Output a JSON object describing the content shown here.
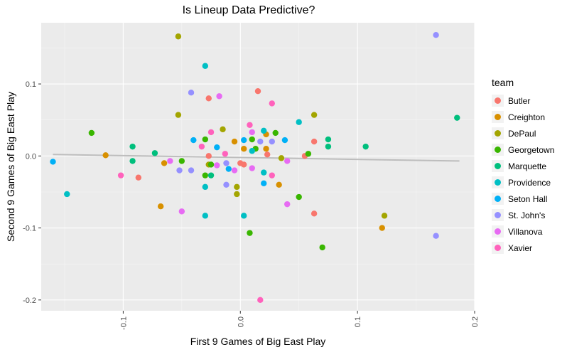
{
  "chart_data": {
    "type": "scatter",
    "title": "Is Lineup Data Predictive?",
    "xlabel": "First 9 Games of Big East Play",
    "ylabel": "Second 9 Games of Big East Play",
    "xlim": [
      -0.17,
      0.2
    ],
    "ylim": [
      -0.215,
      0.185
    ],
    "x_ticks": [
      -0.1,
      0.0,
      0.1,
      0.2
    ],
    "x_tick_labels": [
      "-0.1",
      "0.0",
      "0.1",
      "0.2"
    ],
    "y_ticks": [
      -0.2,
      -0.1,
      0.0,
      0.1
    ],
    "y_tick_labels": [
      "-0.2",
      "-0.1",
      "0.0",
      "0.1"
    ],
    "grid": true,
    "legend_title": "team",
    "legend_position": "right",
    "trend_line": {
      "x": [
        -0.16,
        0.187
      ],
      "y": [
        0.002,
        -0.007
      ]
    },
    "series": [
      {
        "name": "Butler",
        "color": "#F8766D",
        "points": [
          [
            -0.027,
            0.08
          ],
          [
            0.015,
            0.09
          ],
          [
            -0.087,
            -0.03
          ],
          [
            -0.027,
            0.0
          ],
          [
            0.0,
            -0.01
          ],
          [
            0.023,
            0.002
          ],
          [
            0.055,
            0.0
          ],
          [
            0.063,
            0.02
          ],
          [
            0.063,
            -0.08
          ],
          [
            0.003,
            -0.012
          ]
        ]
      },
      {
        "name": "Creighton",
        "color": "#D89000",
        "points": [
          [
            -0.115,
            0.001
          ],
          [
            -0.068,
            -0.07
          ],
          [
            -0.065,
            -0.01
          ],
          [
            -0.005,
            0.02
          ],
          [
            0.003,
            0.01
          ],
          [
            0.022,
            0.01
          ],
          [
            0.022,
            0.03
          ],
          [
            0.033,
            -0.04
          ],
          [
            0.121,
            -0.1
          ]
        ]
      },
      {
        "name": "DePaul",
        "color": "#A3A500",
        "points": [
          [
            -0.053,
            0.166
          ],
          [
            -0.053,
            0.057
          ],
          [
            -0.015,
            0.037
          ],
          [
            -0.027,
            -0.012
          ],
          [
            -0.003,
            -0.053
          ],
          [
            -0.003,
            -0.043
          ],
          [
            0.035,
            -0.003
          ],
          [
            0.063,
            0.057
          ],
          [
            0.123,
            -0.083
          ]
        ]
      },
      {
        "name": "Georgetown",
        "color": "#39B600",
        "points": [
          [
            -0.127,
            0.032
          ],
          [
            -0.03,
            0.023
          ],
          [
            -0.03,
            -0.027
          ],
          [
            -0.05,
            -0.007
          ],
          [
            0.01,
            0.023
          ],
          [
            0.013,
            0.01
          ],
          [
            0.03,
            0.032
          ],
          [
            0.008,
            -0.107
          ],
          [
            0.05,
            -0.057
          ],
          [
            0.07,
            -0.127
          ],
          [
            0.058,
            0.003
          ],
          [
            -0.025,
            -0.012
          ]
        ]
      },
      {
        "name": "Marquette",
        "color": "#00BF7D",
        "points": [
          [
            -0.092,
            0.013
          ],
          [
            -0.092,
            -0.007
          ],
          [
            -0.073,
            0.004
          ],
          [
            0.075,
            0.023
          ],
          [
            0.075,
            0.013
          ],
          [
            0.107,
            0.013
          ],
          [
            0.185,
            0.053
          ],
          [
            -0.025,
            -0.027
          ]
        ]
      },
      {
        "name": "Providence",
        "color": "#00BFC4",
        "points": [
          [
            -0.148,
            -0.053
          ],
          [
            -0.03,
            0.125
          ],
          [
            -0.03,
            -0.043
          ],
          [
            -0.03,
            -0.083
          ],
          [
            0.003,
            -0.083
          ],
          [
            0.01,
            0.007
          ],
          [
            0.02,
            0.035
          ],
          [
            0.05,
            0.047
          ],
          [
            0.02,
            -0.023
          ]
        ]
      },
      {
        "name": "Seton Hall",
        "color": "#00B0F6",
        "points": [
          [
            -0.16,
            -0.008
          ],
          [
            -0.04,
            0.022
          ],
          [
            -0.02,
            0.012
          ],
          [
            -0.01,
            -0.018
          ],
          [
            0.003,
            0.022
          ],
          [
            0.02,
            -0.038
          ],
          [
            0.038,
            0.022
          ]
        ]
      },
      {
        "name": "St. John's",
        "color": "#9590FF",
        "points": [
          [
            -0.042,
            0.088
          ],
          [
            -0.052,
            -0.02
          ],
          [
            -0.042,
            -0.02
          ],
          [
            -0.012,
            -0.04
          ],
          [
            -0.012,
            -0.01
          ],
          [
            0.017,
            0.02
          ],
          [
            0.027,
            0.02
          ],
          [
            0.167,
            0.168
          ],
          [
            0.167,
            -0.111
          ]
        ]
      },
      {
        "name": "Villanova",
        "color": "#E76BF3",
        "points": [
          [
            -0.018,
            0.083
          ],
          [
            -0.06,
            -0.007
          ],
          [
            -0.05,
            -0.077
          ],
          [
            -0.02,
            -0.013
          ],
          [
            -0.005,
            -0.02
          ],
          [
            0.01,
            0.033
          ],
          [
            0.01,
            -0.017
          ],
          [
            0.04,
            -0.007
          ],
          [
            0.04,
            -0.067
          ]
        ]
      },
      {
        "name": "Xavier",
        "color": "#FF62BC",
        "points": [
          [
            -0.102,
            -0.027
          ],
          [
            -0.033,
            0.013
          ],
          [
            -0.025,
            0.033
          ],
          [
            -0.013,
            0.003
          ],
          [
            0.008,
            0.043
          ],
          [
            0.027,
            0.073
          ],
          [
            0.027,
            -0.027
          ],
          [
            0.017,
            -0.2
          ]
        ]
      }
    ]
  }
}
